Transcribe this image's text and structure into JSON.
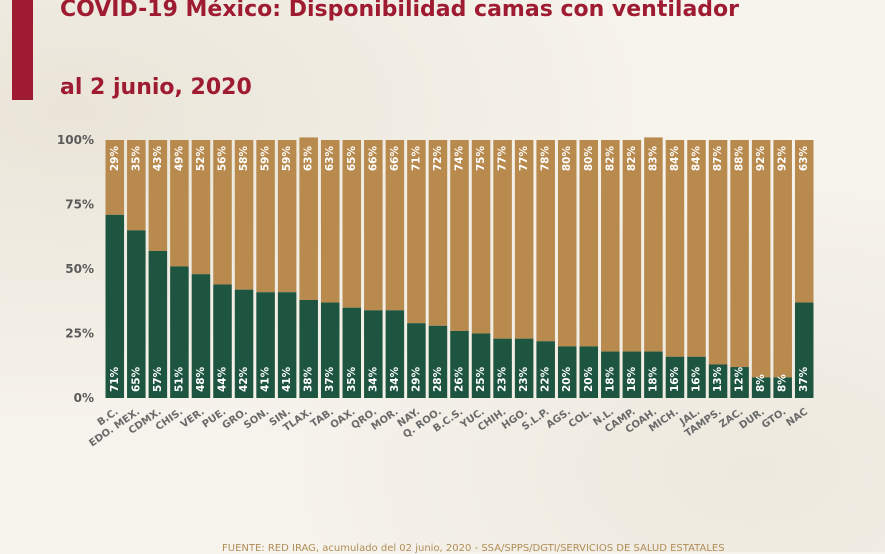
{
  "header": {
    "title_line1": "COVID-19 México: Disponibilidad camas con ventilador",
    "title_line2": "al 2 junio, 2020"
  },
  "footer": {
    "source": "FUENTE: RED IRAG, acumulado del 02 junio, 2020 - SSA/SPPS/DGTI/SERVICIOS DE SALUD ESTATALES"
  },
  "colors": {
    "occupied": "#1d5540",
    "available": "#b88a4e",
    "title": "#9e1b32"
  },
  "chart_data": {
    "type": "bar",
    "stacked": true,
    "categories": [
      "B.C.",
      "EDO. MEX.",
      "CDMX.",
      "CHIS.",
      "VER.",
      "PUE.",
      "GRO.",
      "SON.",
      "SIN.",
      "TLAX.",
      "TAB.",
      "OAX.",
      "QRO.",
      "MOR.",
      "NAY.",
      "Q. ROO.",
      "B.C.S.",
      "YUC.",
      "CHIH.",
      "HGO.",
      "S.L.P.",
      "AGS.",
      "COL.",
      "N.L.",
      "CAMP.",
      "COAH.",
      "MICH.",
      "JAL.",
      "TAMPS.",
      "ZAC.",
      "DUR.",
      "GTO.",
      "NAC"
    ],
    "series": [
      {
        "values": [
          71,
          65,
          57,
          51,
          48,
          44,
          42,
          41,
          41,
          38,
          37,
          35,
          34,
          34,
          29,
          28,
          26,
          25,
          23,
          23,
          22,
          20,
          20,
          18,
          18,
          18,
          16,
          16,
          13,
          12,
          8,
          8,
          37
        ],
        "labels": [
          "71%",
          "65%",
          "57%",
          "51%",
          "48%",
          "44%",
          "42%",
          "41%",
          "41%",
          "38%",
          "37%",
          "35%",
          "34%",
          "34%",
          "29%",
          "28%",
          "26%",
          "25%",
          "23%",
          "23%",
          "22%",
          "20%",
          "20%",
          "18%",
          "18%",
          "18%",
          "16%",
          "16%",
          "13%",
          "12%",
          "8%",
          "8%",
          "37%"
        ]
      },
      {
        "values": [
          29,
          35,
          43,
          49,
          52,
          56,
          58,
          59,
          59,
          63,
          63,
          65,
          66,
          66,
          71,
          72,
          74,
          75,
          77,
          77,
          78,
          80,
          80,
          82,
          82,
          83,
          84,
          84,
          87,
          88,
          92,
          92,
          63
        ],
        "labels": [
          "29%",
          "35%",
          "43%",
          "49%",
          "52%",
          "56%",
          "58%",
          "59%",
          "59%",
          "63%",
          "63%",
          "65%",
          "66%",
          "66%",
          "71%",
          "72%",
          "74%",
          "75%",
          "77%",
          "77%",
          "78%",
          "80%",
          "80%",
          "82%",
          "82%",
          "83%",
          "84%",
          "84%",
          "87%",
          "88%",
          "92%",
          "92%",
          "63%"
        ]
      }
    ],
    "yticks": [
      "0%",
      "25%",
      "50%",
      "75%",
      "100%"
    ],
    "ylim": [
      0,
      100
    ],
    "grid": false,
    "title": "",
    "xlabel": "",
    "ylabel": ""
  }
}
